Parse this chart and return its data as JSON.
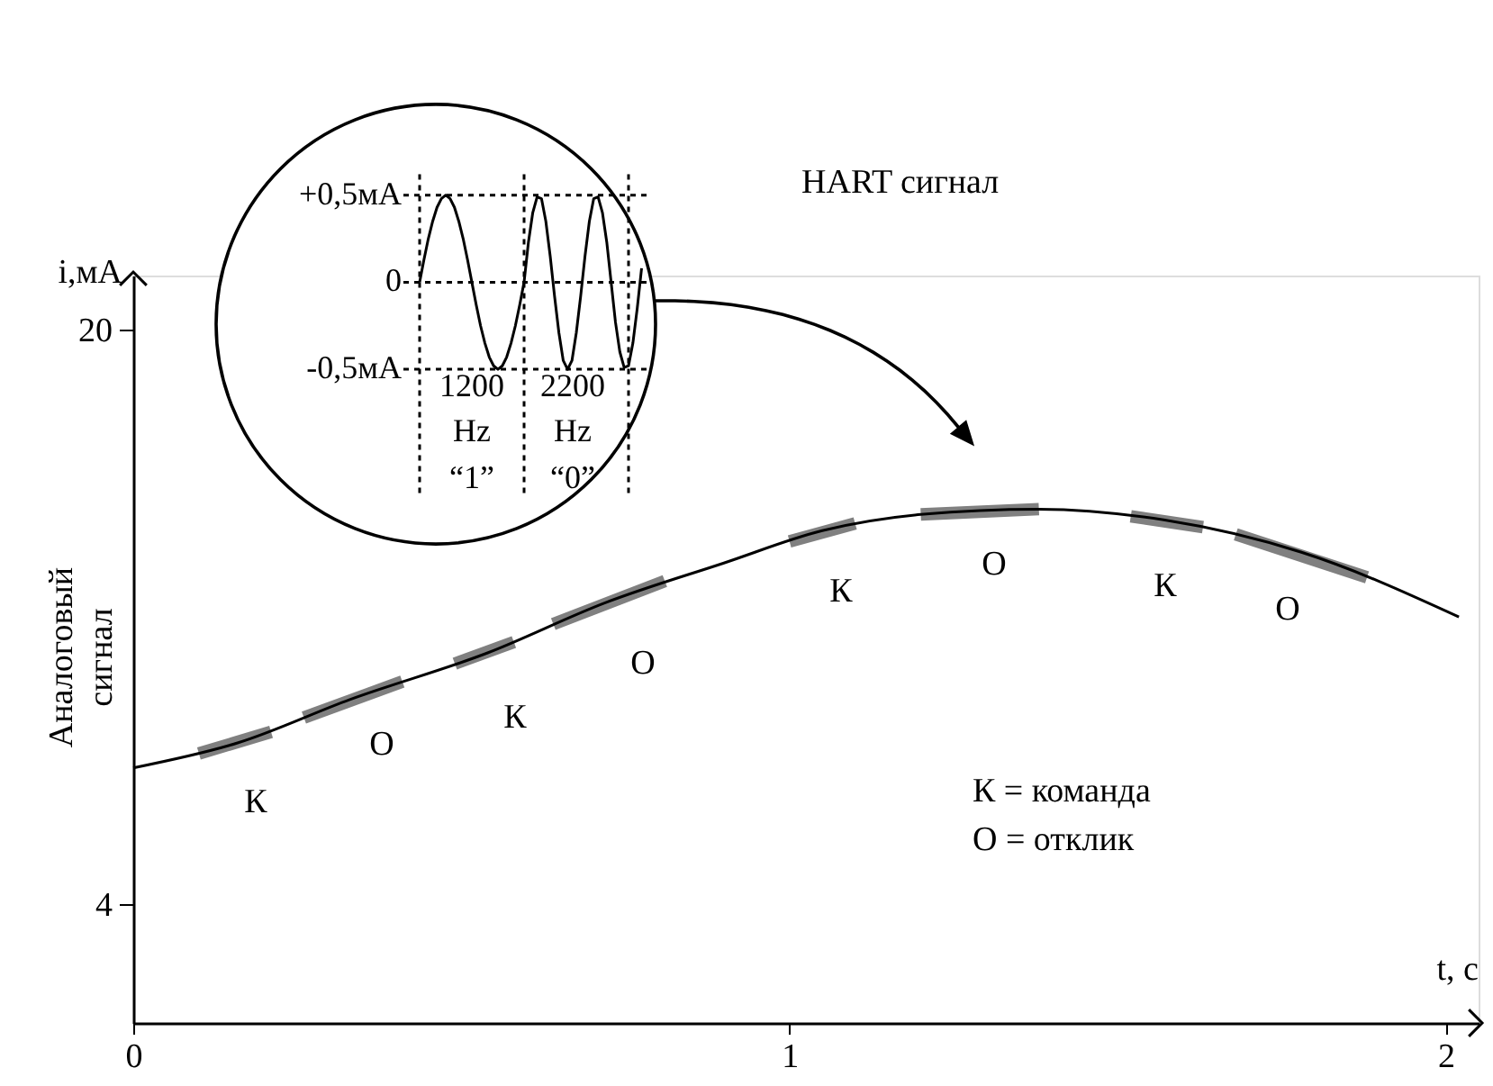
{
  "chart_data": [
    {
      "type": "line",
      "xlabel": "t, с",
      "ylabel": "Аналоговый сигнал",
      "xlim": [
        0,
        2.05
      ],
      "ylim": [
        0.7,
        21.5
      ],
      "xticks": [
        0,
        1,
        2
      ],
      "yticks": [
        4,
        20
      ],
      "grid": false,
      "series": [
        {
          "type": "line",
          "color": "#000000",
          "x": [
            0,
            0.16,
            0.33,
            0.54,
            0.72,
            0.9,
            1.05,
            1.2,
            1.38,
            1.57,
            1.78,
            2.02
          ],
          "values": [
            7.8,
            8.5,
            9.7,
            11.0,
            12.4,
            13.5,
            14.4,
            14.85,
            15.0,
            14.7,
            13.8,
            12.0
          ]
        },
        {
          "type": "line",
          "color": "#808080",
          "x": [
            0.1,
            0.21,
            0.235,
            0.26,
            0.41,
            0.45,
            0.49,
            0.58,
            0.61,
            0.64,
            0.81,
            0.9,
            1.0,
            1.1,
            1.15,
            1.2,
            1.38,
            1.45,
            1.52,
            1.63,
            1.655,
            1.68,
            1.88
          ],
          "values": [
            8.2,
            8.8,
            null,
            9.2,
            10.2,
            null,
            10.7,
            11.3,
            null,
            11.8,
            13.0,
            null,
            14.1,
            14.6,
            null,
            14.85,
            15.0,
            null,
            14.8,
            14.5,
            null,
            14.3,
            13.1
          ]
        }
      ],
      "annotations": [
        "i,мА",
        "HART сигнал",
        "К = команда",
        "О = отклик",
        "К",
        "О",
        "К",
        "О",
        "К",
        "О",
        "К",
        "О"
      ]
    },
    {
      "type": "line",
      "color": "#000000",
      "ylim": [
        -1.22,
        0.62
      ],
      "grid": "y",
      "tick_labels": "y",
      "yticks": [
        {
          "value": 0.5,
          "label": "+0,5мА"
        },
        0,
        {
          "value": -0.5,
          "label": "-0,5мА"
        }
      ],
      "categories": [
        null,
        null,
        null,
        null,
        null,
        null,
        null,
        null,
        null,
        null,
        null,
        null,
        null,
        null,
        null,
        null,
        null,
        null,
        null,
        null,
        null,
        null,
        null,
        null,
        null,
        null,
        null,
        null,
        null,
        null,
        null,
        null,
        null,
        null,
        null,
        null,
        null,
        null,
        null,
        null,
        null,
        null,
        null,
        null,
        null,
        null,
        null,
        null,
        null,
        null,
        null,
        null
      ],
      "values": [
        0,
        0.13,
        0.25,
        0.35,
        0.43,
        0.48,
        0.5,
        0.48,
        0.43,
        0.35,
        0.25,
        0.13,
        0,
        -0.13,
        -0.25,
        -0.35,
        -0.43,
        -0.48,
        -0.5,
        -0.48,
        -0.43,
        -0.35,
        -0.25,
        -0.13,
        0,
        0.23,
        0.4,
        0.49,
        0.48,
        0.35,
        0.15,
        -0.08,
        -0.29,
        -0.45,
        -0.5,
        -0.45,
        -0.29,
        -0.08,
        0.15,
        0.35,
        0.48,
        0.49,
        0.4,
        0.23,
        0,
        -0.23,
        -0.4,
        -0.49,
        -0.48,
        -0.35,
        -0.15,
        0.08
      ],
      "annotations": [
        "1200 Hz",
        "“1”",
        "2200 Hz",
        "“0”"
      ]
    }
  ]
}
